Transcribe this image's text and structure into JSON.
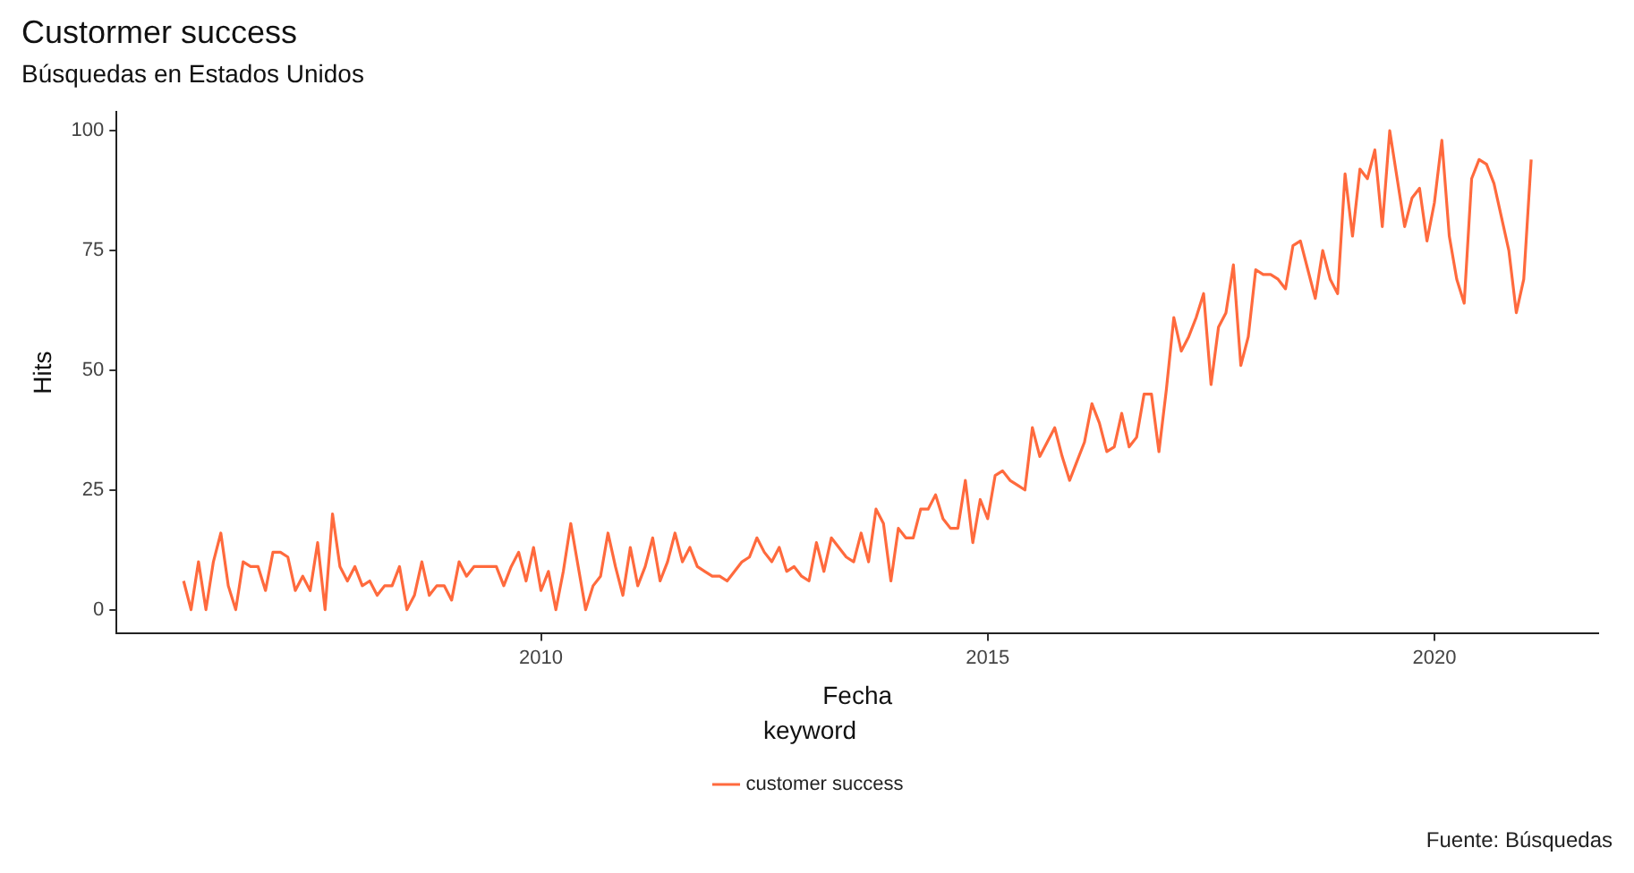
{
  "chart_data": {
    "type": "line",
    "title": "Custormer success",
    "subtitle": "Búsquedas en Estados Unidos",
    "xlabel": "Fecha",
    "ylabel": "Hits",
    "legend_title": "keyword",
    "annotations": [
      "Fuente: Búsquedas"
    ],
    "x": [
      "2006-01",
      "2006-02",
      "2006-03",
      "2006-04",
      "2006-05",
      "2006-06",
      "2006-07",
      "2006-08",
      "2006-09",
      "2006-10",
      "2006-11",
      "2006-12",
      "2007-01",
      "2007-02",
      "2007-03",
      "2007-04",
      "2007-05",
      "2007-06",
      "2007-07",
      "2007-08",
      "2007-09",
      "2007-10",
      "2007-11",
      "2007-12",
      "2008-01",
      "2008-02",
      "2008-03",
      "2008-04",
      "2008-05",
      "2008-06",
      "2008-07",
      "2008-08",
      "2008-09",
      "2008-10",
      "2008-11",
      "2008-12",
      "2009-01",
      "2009-02",
      "2009-03",
      "2009-04",
      "2009-05",
      "2009-06",
      "2009-07",
      "2009-08",
      "2009-09",
      "2009-10",
      "2009-11",
      "2009-12",
      "2010-01",
      "2010-02",
      "2010-03",
      "2010-04",
      "2010-05",
      "2010-06",
      "2010-07",
      "2010-08",
      "2010-09",
      "2010-10",
      "2010-11",
      "2010-12",
      "2011-01",
      "2011-02",
      "2011-03",
      "2011-04",
      "2011-05",
      "2011-06",
      "2011-07",
      "2011-08",
      "2011-09",
      "2011-10",
      "2011-11",
      "2011-12",
      "2012-01",
      "2012-02",
      "2012-03",
      "2012-04",
      "2012-05",
      "2012-06",
      "2012-07",
      "2012-08",
      "2012-09",
      "2012-10",
      "2012-11",
      "2012-12",
      "2013-01",
      "2013-02",
      "2013-03",
      "2013-04",
      "2013-05",
      "2013-06",
      "2013-07",
      "2013-08",
      "2013-09",
      "2013-10",
      "2013-11",
      "2013-12",
      "2014-01",
      "2014-02",
      "2014-03",
      "2014-04",
      "2014-05",
      "2014-06",
      "2014-07",
      "2014-08",
      "2014-09",
      "2014-10",
      "2014-11",
      "2014-12",
      "2015-01",
      "2015-02",
      "2015-03",
      "2015-04",
      "2015-05",
      "2015-06",
      "2015-07",
      "2015-08",
      "2015-09",
      "2015-10",
      "2015-11",
      "2015-12",
      "2016-01",
      "2016-02",
      "2016-03",
      "2016-04",
      "2016-05",
      "2016-06",
      "2016-07",
      "2016-08",
      "2016-09",
      "2016-10",
      "2016-11",
      "2016-12",
      "2017-01",
      "2017-02",
      "2017-03",
      "2017-04",
      "2017-05",
      "2017-06",
      "2017-07",
      "2017-08",
      "2017-09",
      "2017-10",
      "2017-11",
      "2017-12",
      "2018-01",
      "2018-02",
      "2018-03",
      "2018-04",
      "2018-05",
      "2018-06",
      "2018-07",
      "2018-08",
      "2018-09",
      "2018-10",
      "2018-11",
      "2018-12",
      "2019-01",
      "2019-02",
      "2019-03",
      "2019-04",
      "2019-05",
      "2019-06",
      "2019-07",
      "2019-08",
      "2019-09",
      "2019-10",
      "2019-11",
      "2019-12",
      "2020-01",
      "2020-02",
      "2020-03",
      "2020-04",
      "2020-05",
      "2020-06",
      "2020-07",
      "2020-08",
      "2020-09",
      "2020-10",
      "2020-11",
      "2020-12",
      "2021-01",
      "2021-02"
    ],
    "series": [
      {
        "name": "customer success",
        "color": "#ff6a3d",
        "values": [
          6,
          0,
          10,
          0,
          10,
          16,
          5,
          0,
          10,
          9,
          9,
          4,
          12,
          12,
          11,
          4,
          7,
          4,
          14,
          0,
          20,
          9,
          6,
          9,
          5,
          6,
          3,
          5,
          5,
          9,
          0,
          3,
          10,
          3,
          5,
          5,
          2,
          10,
          7,
          9,
          9,
          9,
          9,
          5,
          9,
          12,
          6,
          13,
          4,
          8,
          0,
          8,
          18,
          9,
          0,
          5,
          7,
          16,
          9,
          3,
          13,
          5,
          9,
          15,
          6,
          10,
          16,
          10,
          13,
          9,
          8,
          7,
          7,
          6,
          8,
          10,
          11,
          15,
          12,
          10,
          13,
          8,
          9,
          7,
          6,
          14,
          8,
          15,
          13,
          11,
          10,
          16,
          10,
          21,
          18,
          6,
          17,
          15,
          15,
          21,
          21,
          24,
          19,
          17,
          17,
          27,
          14,
          23,
          19,
          28,
          29,
          27,
          26,
          25,
          38,
          32,
          35,
          38,
          32,
          27,
          31,
          35,
          43,
          39,
          33,
          34,
          41,
          34,
          36,
          45,
          45,
          33,
          46,
          61,
          54,
          57,
          61,
          66,
          47,
          59,
          62,
          72,
          51,
          57,
          71,
          70,
          70,
          69,
          67,
          76,
          77,
          71,
          65,
          75,
          69,
          66,
          91,
          78,
          92,
          90,
          96,
          80,
          100,
          90,
          80,
          86,
          88,
          77,
          85,
          98,
          78,
          69,
          64,
          90,
          94,
          93,
          89,
          82,
          75,
          62,
          69,
          94
        ]
      }
    ],
    "xlim": [
      "2005-04",
      "2021-11"
    ],
    "xticks": [
      "2010",
      "2015",
      "2020"
    ],
    "ylim": [
      -5,
      104
    ],
    "yticks": [
      0,
      25,
      50,
      75,
      100
    ],
    "grid": false,
    "legend": "bottom",
    "line_style": "solid",
    "marker": "none"
  }
}
